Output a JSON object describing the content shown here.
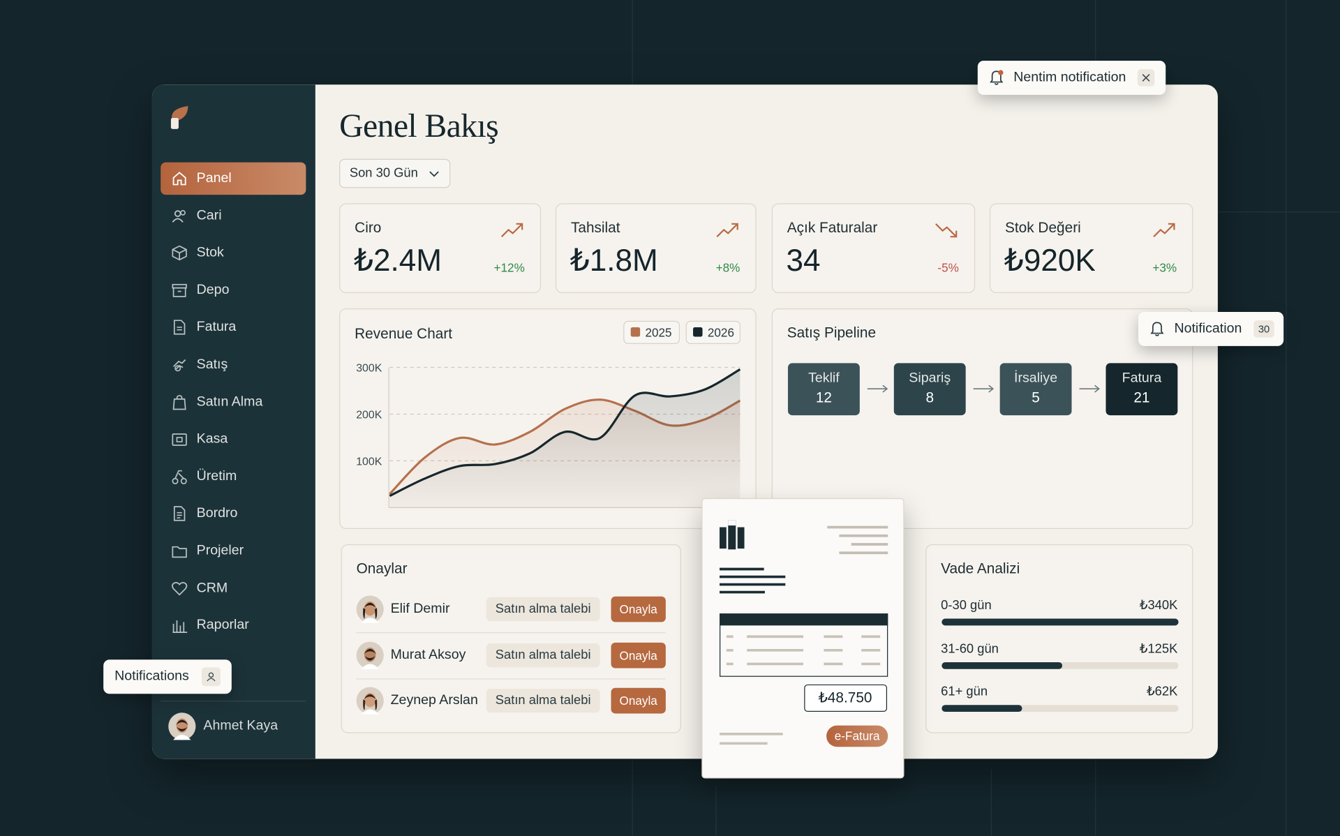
{
  "notification_toast": {
    "text": "Nentim notification"
  },
  "sidebar": {
    "nav": [
      "Panel",
      "Cari",
      "Stok",
      "Depo",
      "Fatura",
      "Satış",
      "Satın Alma",
      "Kasa",
      "Üretim",
      "Bordro",
      "Projeler",
      "CRM",
      "Raporlar"
    ],
    "active": 0,
    "user": "Ahmet Kaya"
  },
  "floating_notifications": {
    "text": "Notifications"
  },
  "floating_notification": {
    "text": "Notification",
    "count": 30
  },
  "header": {
    "title": "Genel Bakış",
    "range": "Son 30 Gün"
  },
  "kpis": [
    {
      "label": "Ciro",
      "value": "₺2.4M",
      "change": "+12%",
      "trend": "up"
    },
    {
      "label": "Tahsilat",
      "value": "₺1.8M",
      "change": "+8%",
      "trend": "up"
    },
    {
      "label": "Açık Faturalar",
      "value": "34",
      "change": "-5%",
      "trend": "down"
    },
    {
      "label": "Stok Değeri",
      "value": "₺920K",
      "change": "+3%",
      "trend": "up"
    }
  ],
  "chart_data": {
    "type": "line",
    "title": "Revenue Chart",
    "ylim": [
      0,
      300000
    ],
    "yticks": [
      {
        "value": 100000,
        "label": "100K"
      },
      {
        "value": 200000,
        "label": "200K"
      },
      {
        "value": 300000,
        "label": "300K"
      }
    ],
    "grid": true,
    "series": [
      {
        "name": "2025",
        "color": "#b5714d",
        "values": [
          29000,
          107000,
          149000,
          135000,
          162000,
          211000,
          231000,
          207000,
          176000,
          189000,
          229000
        ]
      },
      {
        "name": "2026",
        "color": "#16262c",
        "values": [
          25000,
          62000,
          89000,
          93000,
          116000,
          162000,
          149000,
          240000,
          238000,
          253000,
          296000
        ]
      }
    ]
  },
  "pipeline": {
    "title": "Satış Pipeline",
    "stages": [
      {
        "label": "Teklif",
        "count": 12
      },
      {
        "label": "Sipariş",
        "count": 8
      },
      {
        "label": "İrsaliye",
        "count": 5
      },
      {
        "label": "Fatura",
        "count": 21
      }
    ]
  },
  "approvals": {
    "title": "Onaylar",
    "rows": [
      {
        "name": "Elif Demir",
        "request": "Satın alma talebi",
        "action": "Onayla"
      },
      {
        "name": "Murat Aksoy",
        "request": "Satın alma talebi",
        "action": "Onayla"
      },
      {
        "name": "Zeynep Arslan",
        "request": "Satın alma talebi",
        "action": "Onayla"
      }
    ]
  },
  "invoice": {
    "amount": "₺48.750",
    "tag": "e-Fatura"
  },
  "aging": {
    "title": "Vade Analizi",
    "rows": [
      {
        "label": "0-30 gün",
        "amount": "₺340K",
        "fill_percent": 100
      },
      {
        "label": "31-60 gün",
        "amount": "₺125K",
        "fill_percent": 51
      },
      {
        "label": "61+ gün",
        "amount": "₺62K",
        "fill_percent": 34
      }
    ]
  }
}
